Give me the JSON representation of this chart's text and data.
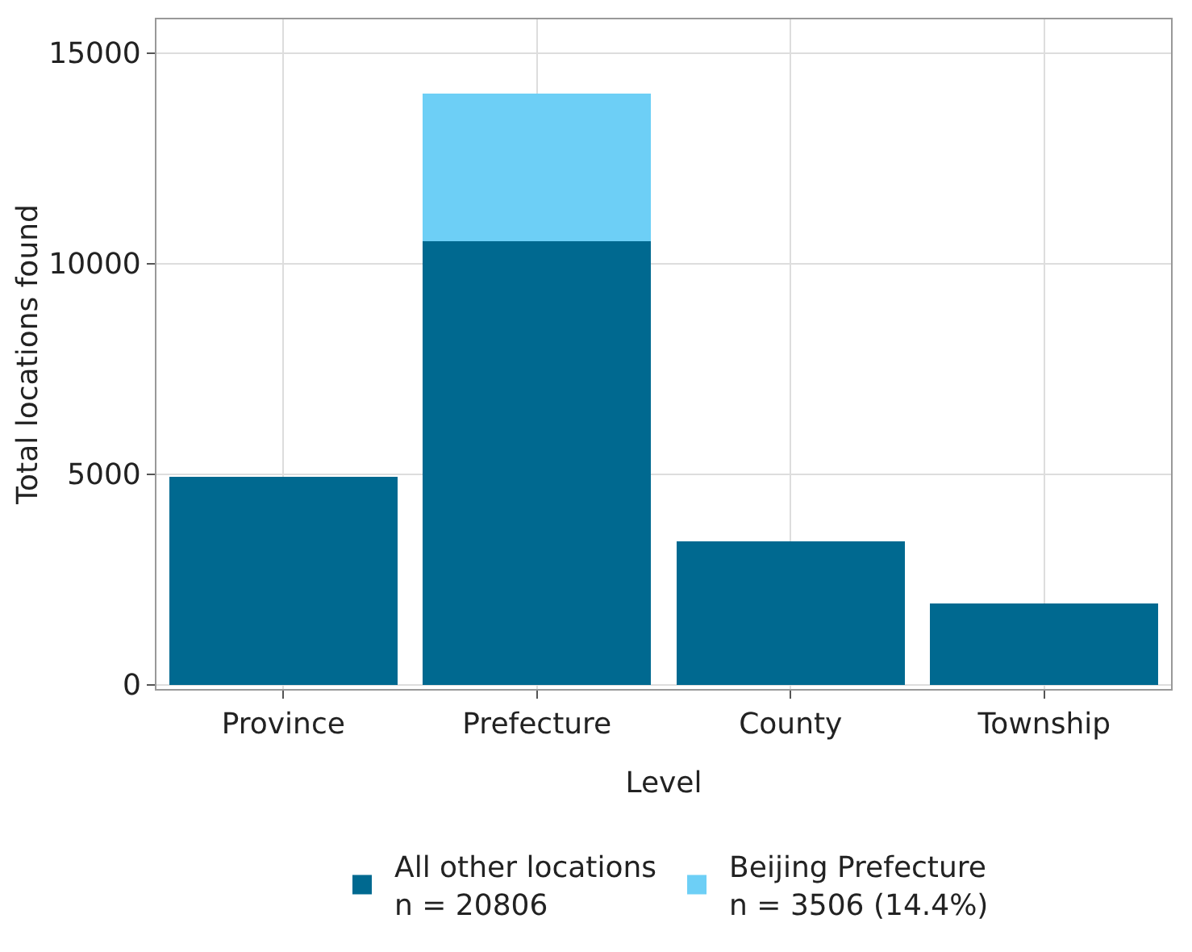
{
  "chart_data": {
    "type": "bar",
    "stacked": true,
    "xlabel": "Level",
    "ylabel": "Total locations found",
    "categories": [
      "Province",
      "Prefecture",
      "County",
      "Township"
    ],
    "series": [
      {
        "name": "All other locations\nn = 20806",
        "color": "#006990",
        "values": [
          4930,
          10530,
          3410,
          1940
        ]
      },
      {
        "name": "Beijing Prefecture\nn = 3506 (14.4%)",
        "color": "#6dcff6",
        "values": [
          0,
          3510,
          0,
          0
        ]
      }
    ],
    "ylim": [
      -100,
      15800
    ],
    "yticks": [
      0,
      5000,
      10000,
      15000
    ],
    "grid": true,
    "legend": "bottom"
  }
}
